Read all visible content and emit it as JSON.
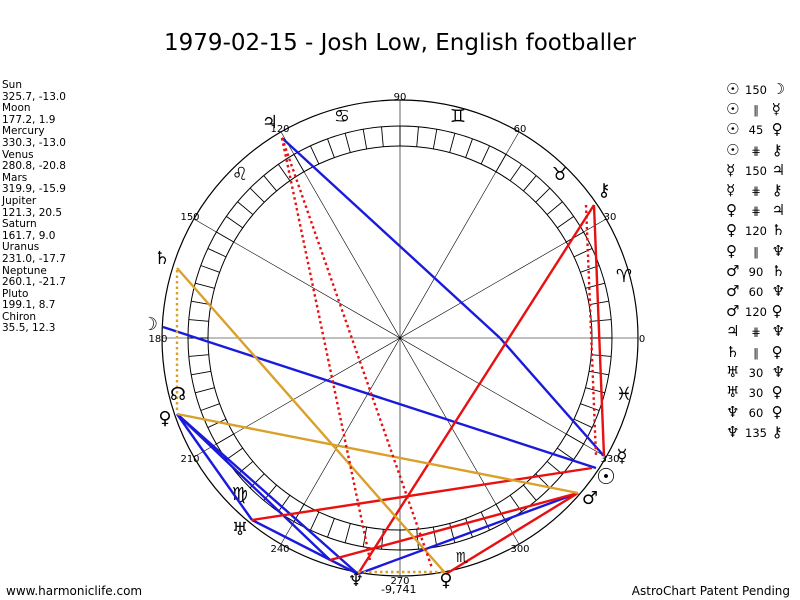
{
  "title": "1979-02-15 - Josh Low, English footballer",
  "planets": [
    {
      "name": "Sun",
      "pos": "325.7, -13.0"
    },
    {
      "name": "Moon",
      "pos": "177.2, 1.9"
    },
    {
      "name": "Mercury",
      "pos": "330.3, -13.0"
    },
    {
      "name": "Venus",
      "pos": "280.8, -20.8"
    },
    {
      "name": "Mars",
      "pos": "319.9, -15.9"
    },
    {
      "name": "Jupiter",
      "pos": "121.3, 20.5"
    },
    {
      "name": "Saturn",
      "pos": "161.7, 9.0"
    },
    {
      "name": "Uranus",
      "pos": "231.0, -17.7"
    },
    {
      "name": "Neptune",
      "pos": "260.1, -21.7"
    },
    {
      "name": "Pluto",
      "pos": "199.1, 8.7"
    },
    {
      "name": "Chiron",
      "pos": "35.5, 12.3"
    }
  ],
  "aspects": [
    {
      "p1": "☉",
      "sym": "150",
      "p2": "☽"
    },
    {
      "p1": "☉",
      "sym": "∥",
      "p2": "☿"
    },
    {
      "p1": "☉",
      "sym": "45",
      "p2": "♀"
    },
    {
      "p1": "☉",
      "sym": "⋕",
      "p2": "⚷"
    },
    {
      "p1": "☿",
      "sym": "150",
      "p2": "♃"
    },
    {
      "p1": "☿",
      "sym": "⋕",
      "p2": "⚷"
    },
    {
      "p1": "♀",
      "sym": "⋕",
      "p2": "♃"
    },
    {
      "p1": "♀",
      "sym": "120",
      "p2": "♄"
    },
    {
      "p1": "♀",
      "sym": "∥",
      "p2": "♆"
    },
    {
      "p1": "♂",
      "sym": "90",
      "p2": "♄"
    },
    {
      "p1": "♂",
      "sym": "60",
      "p2": "♆"
    },
    {
      "p1": "♂",
      "sym": "120",
      "p2": "♀"
    },
    {
      "p1": "♃",
      "sym": "⋕",
      "p2": "♆"
    },
    {
      "p1": "♄",
      "sym": "∥",
      "p2": "♀"
    },
    {
      "p1": "♅",
      "sym": "30",
      "p2": "♆"
    },
    {
      "p1": "♅",
      "sym": "30",
      "p2": "♀"
    },
    {
      "p1": "♆",
      "sym": "60",
      "p2": "♀"
    },
    {
      "p1": "♆",
      "sym": "135",
      "p2": "⚷"
    }
  ],
  "footer_left": "www.harmoniclife.com",
  "footer_right": "AstroChart Patent Pending",
  "bottom_value": "-9,741",
  "degree_labels": {
    "d0": "0",
    "d30": "30",
    "d60": "60",
    "d90": "90",
    "d120": "120",
    "d150": "150",
    "d180": "180",
    "d210": "210",
    "d240": "240",
    "d270": "270",
    "d300": "300",
    "d330": "330"
  },
  "colors": {
    "red": "#e81010",
    "blue": "#1a1adb",
    "gold": "#d9a02a"
  },
  "planet_glyphs": {
    "sun": "☉",
    "moon": "☽",
    "mercury": "☿",
    "venus": "♀",
    "mars": "♂",
    "jupiter": "♃",
    "saturn": "♄",
    "uranus": "♅",
    "neptune": "♆",
    "pluto": "♀",
    "chiron": "⚷",
    "node": "☊"
  },
  "zodiac_glyphs": {
    "aries": "♈",
    "taurus": "♉",
    "gemini": "♊",
    "cancer": "♋",
    "leo": "♌",
    "virgo": "♍",
    "libra": "♎",
    "scorpio": "♏",
    "sagittarius": "♐",
    "capricorn": "♑",
    "aquarius": "♒",
    "pisces": "♓"
  }
}
